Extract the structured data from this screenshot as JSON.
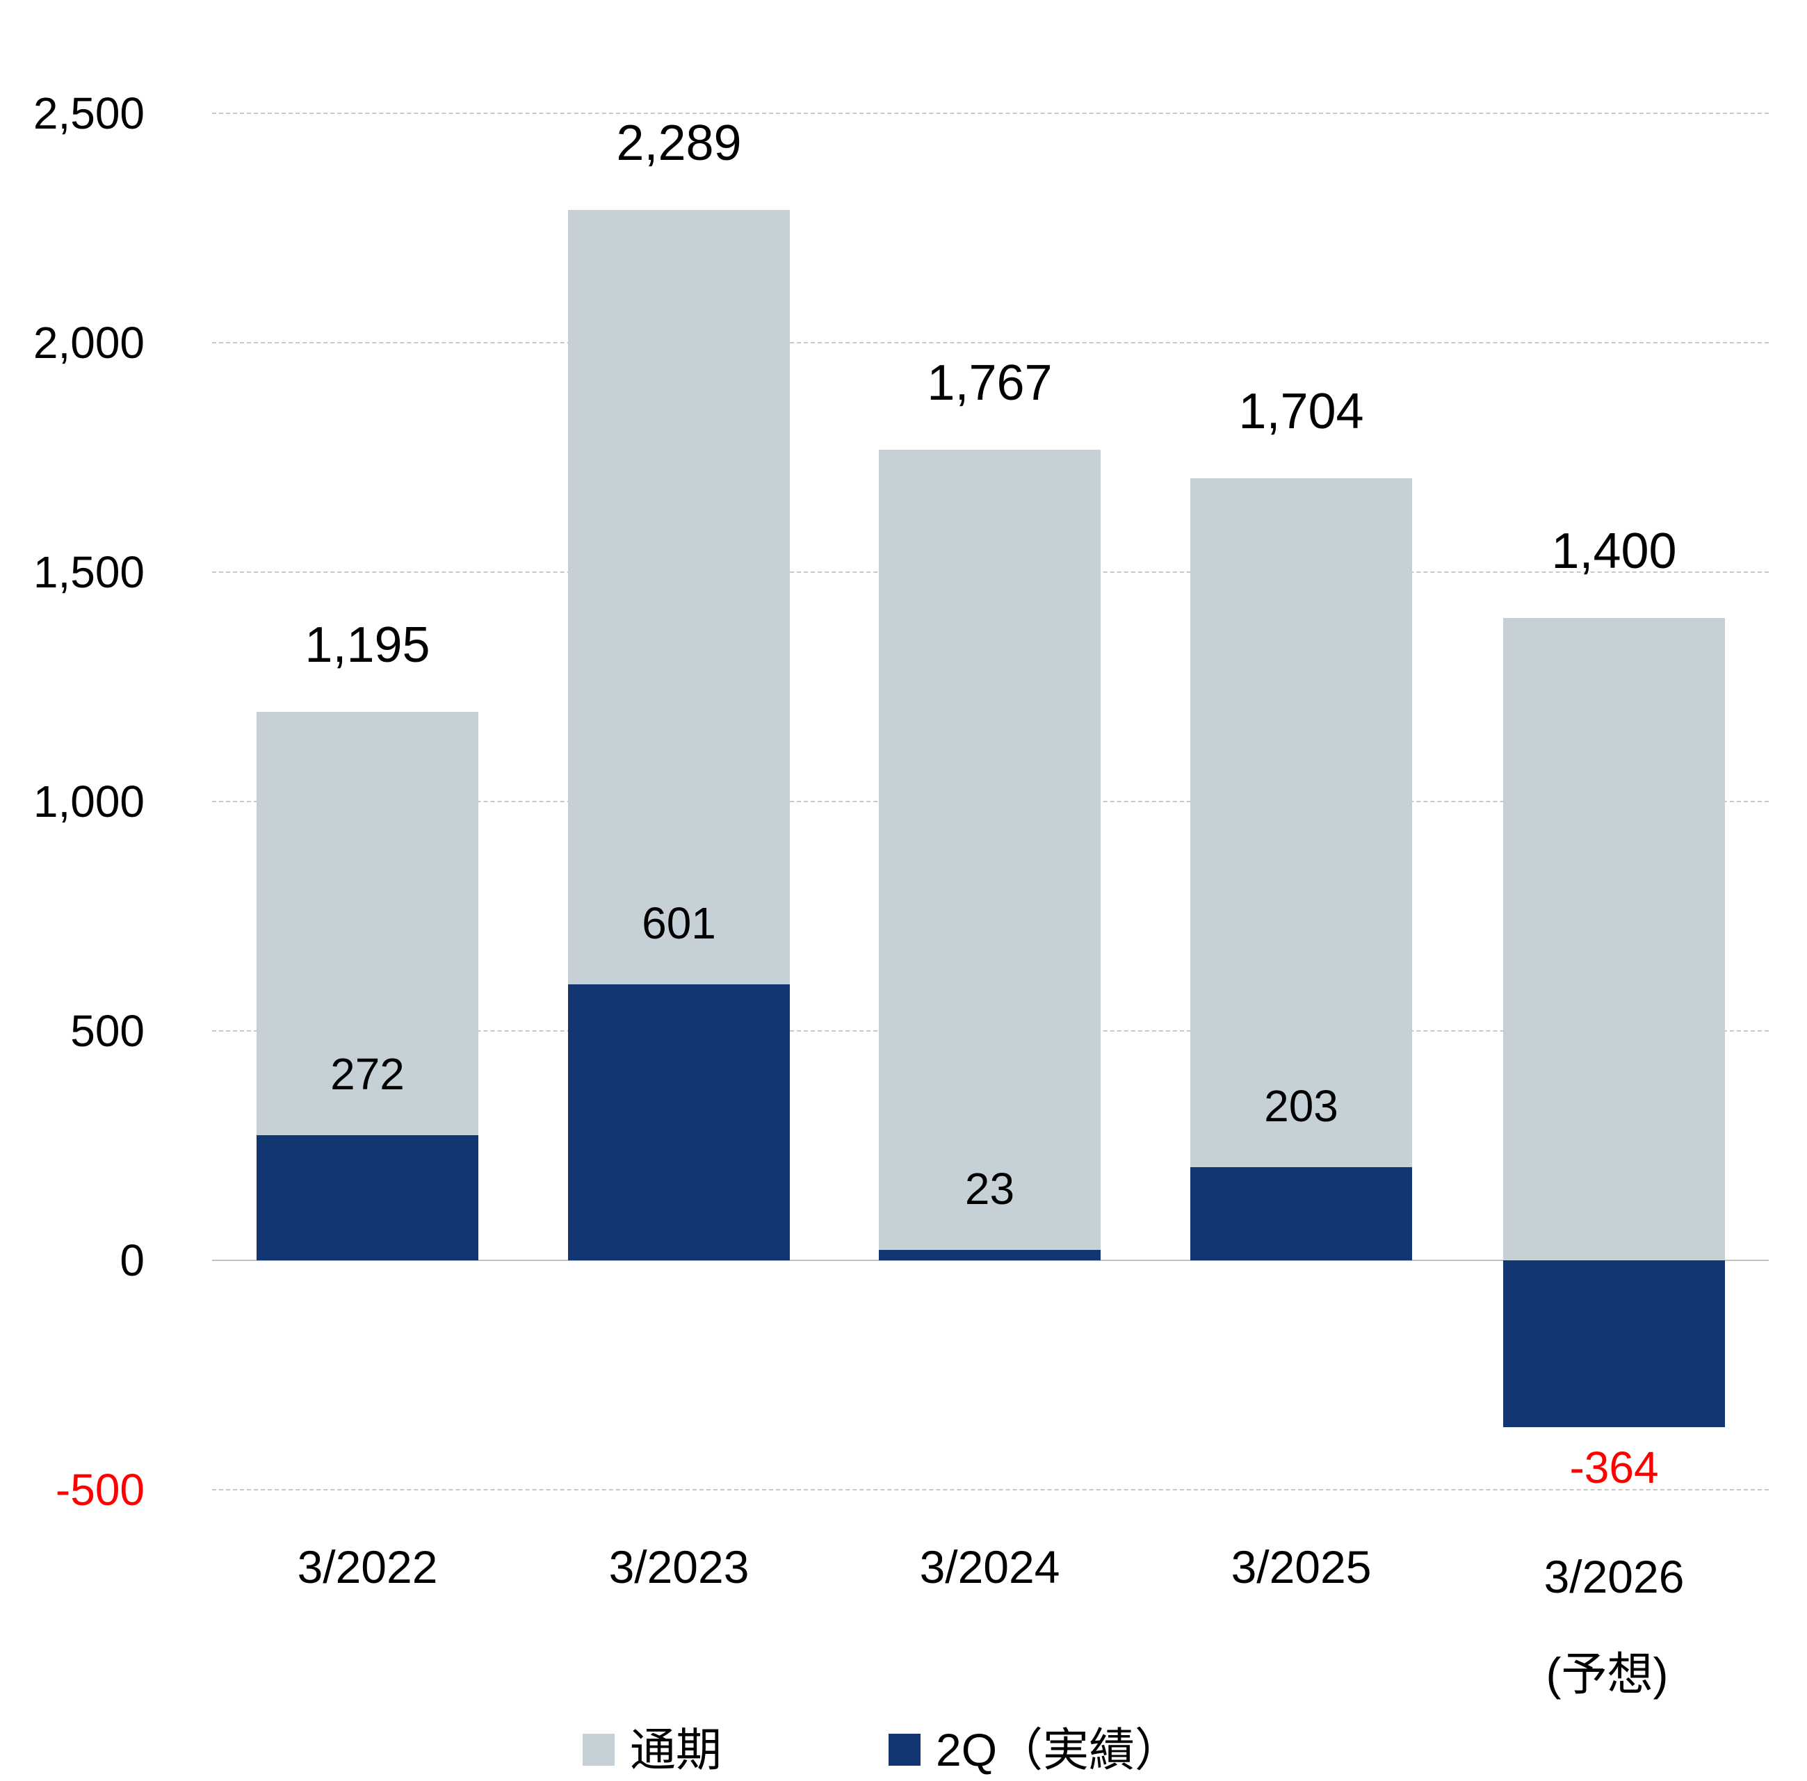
{
  "chart_data": {
    "type": "bar",
    "stacking": "overlay",
    "title": "",
    "xlabel": "",
    "ylabel": "",
    "ylim": [
      -500,
      2500
    ],
    "yticks": [
      "2,500",
      "2,000",
      "1,500",
      "1,000",
      "500",
      "0",
      "-500"
    ],
    "grid": true,
    "legend_position": "bottom",
    "categories": [
      "3/2022",
      "3/2023",
      "3/2024",
      "3/2025",
      "3/2026"
    ],
    "category_sublabels": [
      "",
      "",
      "",
      "",
      "(予想)"
    ],
    "series": [
      {
        "name": "通期",
        "color": "#c5d0d7",
        "values": [
          1195,
          2289,
          1767,
          1704,
          1400
        ],
        "labels": [
          "1,195",
          "2,289",
          "1,767",
          "1,704",
          "1,400"
        ]
      },
      {
        "name": "2Q（実績）",
        "color": "#113672",
        "values": [
          272,
          601,
          23,
          203,
          -364
        ],
        "labels": [
          "272",
          "601",
          "23",
          "203",
          "-364"
        ]
      }
    ],
    "negative_label_color": "#ff0000"
  },
  "legend": {
    "items": [
      {
        "label": "通期",
        "color": "#c5d0d7"
      },
      {
        "label": "2Q（実績）",
        "color": "#113672"
      }
    ]
  }
}
